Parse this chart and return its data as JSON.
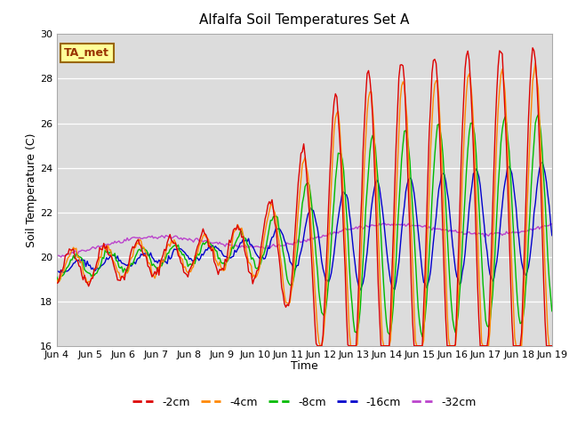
{
  "title": "Alfalfa Soil Temperatures Set A",
  "xlabel": "Time",
  "ylabel": "Soil Temperature (C)",
  "ylim": [
    16,
    30
  ],
  "tick_labels": [
    "Jun 4",
    "Jun 5",
    "Jun 6",
    "Jun 7",
    "Jun 8",
    "Jun 9",
    "Jun 10",
    "Jun 11",
    "Jun 12",
    "Jun 13",
    "Jun 14",
    "Jun 15",
    "Jun 16",
    "Jun 17",
    "Jun 18",
    "Jun 19"
  ],
  "colors": {
    "-2cm": "#dd0000",
    "-4cm": "#ff8800",
    "-8cm": "#00bb00",
    "-16cm": "#0000cc",
    "-32cm": "#bb44cc"
  },
  "annotation_text": "TA_met",
  "annotation_fgcolor": "#993300",
  "annotation_bgcolor": "#ffff99",
  "annotation_edgecolor": "#996600",
  "plot_bgcolor": "#dcdcdc",
  "grid_color": "#ffffff",
  "yticks": [
    16,
    18,
    20,
    22,
    24,
    26,
    28,
    30
  ]
}
